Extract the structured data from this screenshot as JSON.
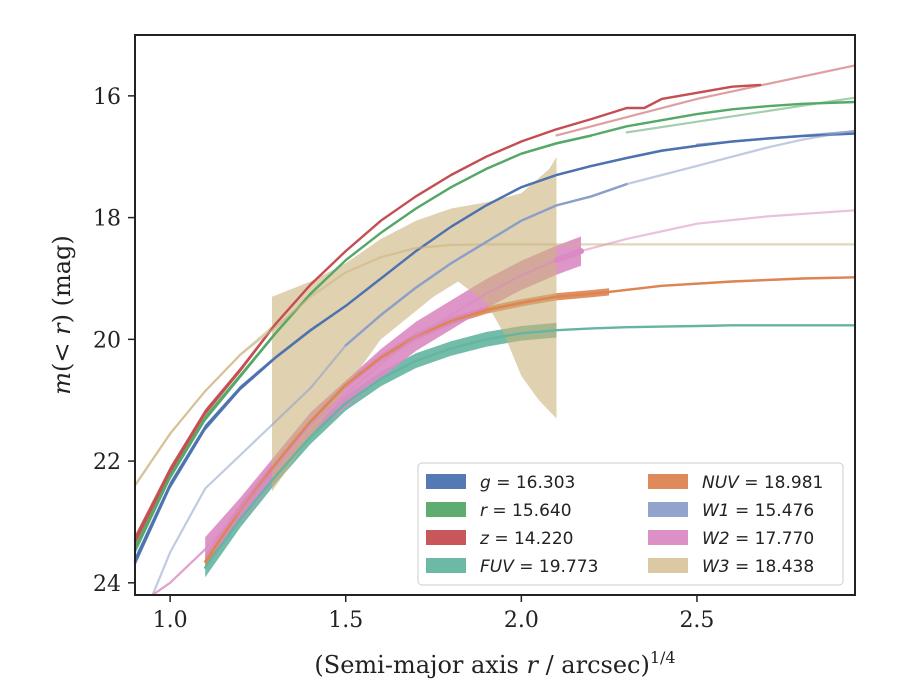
{
  "chart_data": {
    "type": "line",
    "xlabel": "(Semi-major axis r / arcsec)",
    "xlabel_parts": {
      "pre": "(Semi-major axis ",
      "var": "r",
      "post": " / arcsec)",
      "sup": "1/4"
    },
    "ylabel_parts": {
      "var1": "m",
      "mid": "(< ",
      "var2": "r",
      "post": ") (mag)"
    },
    "xlim": [
      0.9,
      2.95
    ],
    "ylim": [
      24.2,
      15.0
    ],
    "y_inverted": true,
    "xticks": [
      1.0,
      1.5,
      2.0,
      2.5
    ],
    "xtick_labels": [
      "1.0",
      "1.5",
      "2.0",
      "2.5"
    ],
    "yticks": [
      16,
      18,
      20,
      22,
      24
    ],
    "ytick_labels": [
      "16",
      "18",
      "20",
      "22",
      "24"
    ],
    "grid": false,
    "legend_position": "lower-right",
    "series": [
      {
        "name": "g = 16.303",
        "band": "g",
        "mag_text": "16.303",
        "color": "#4c72b0",
        "x": [
          0.9,
          1.0,
          1.1,
          1.2,
          1.3,
          1.4,
          1.5,
          1.6,
          1.7,
          1.8,
          1.9,
          2.0,
          2.1,
          2.2,
          2.3,
          2.4,
          2.5,
          2.6,
          2.7,
          2.8,
          2.95
        ],
        "y": [
          23.65,
          22.4,
          21.45,
          20.8,
          20.3,
          19.85,
          19.45,
          19.0,
          18.55,
          18.15,
          17.8,
          17.5,
          17.3,
          17.15,
          17.02,
          16.9,
          16.82,
          16.75,
          16.7,
          16.66,
          16.62
        ],
        "band_x": [
          0.9,
          1.0,
          1.1,
          1.2,
          1.3,
          1.4,
          1.5,
          1.6,
          1.7,
          1.8,
          1.9,
          2.0,
          2.1,
          2.2,
          2.3,
          2.4,
          2.5
        ],
        "band_width": [
          0.08,
          0.06,
          0.05,
          0.04,
          0.03,
          0.03,
          0.02,
          0.02,
          0.02,
          0.02,
          0.02,
          0.02,
          0.02,
          0.02,
          0.02,
          0.02,
          0.02
        ],
        "faint_x": [
          2.5,
          2.95
        ],
        "faint_y": [
          16.8,
          16.58
        ]
      },
      {
        "name": "r = 15.640",
        "band": "r",
        "mag_text": "15.640",
        "color": "#55a868",
        "x": [
          0.9,
          1.0,
          1.1,
          1.2,
          1.3,
          1.4,
          1.5,
          1.6,
          1.7,
          1.8,
          1.9,
          2.0,
          2.1,
          2.2,
          2.3,
          2.4,
          2.5,
          2.6,
          2.7,
          2.8,
          2.95
        ],
        "y": [
          23.45,
          22.25,
          21.3,
          20.6,
          19.9,
          19.25,
          18.7,
          18.25,
          17.85,
          17.5,
          17.2,
          16.95,
          16.78,
          16.65,
          16.5,
          16.4,
          16.3,
          16.22,
          16.17,
          16.13,
          16.1
        ],
        "band_x": [
          0.9,
          1.0,
          1.1,
          1.2,
          1.3,
          1.4,
          1.5,
          1.6,
          1.7,
          1.8,
          1.9,
          2.0,
          2.1,
          2.2
        ],
        "band_width": [
          0.08,
          0.06,
          0.05,
          0.04,
          0.03,
          0.03,
          0.02,
          0.02,
          0.02,
          0.02,
          0.02,
          0.02,
          0.02,
          0.02
        ],
        "faint_x": [
          2.3,
          2.95
        ],
        "faint_y": [
          16.6,
          16.03
        ]
      },
      {
        "name": "z = 14.220",
        "band": "z",
        "mag_text": "14.220",
        "color": "#c44e52",
        "x": [
          0.9,
          1.0,
          1.1,
          1.2,
          1.3,
          1.4,
          1.5,
          1.6,
          1.7,
          1.8,
          1.9,
          2.0,
          2.1,
          2.2,
          2.3,
          2.35,
          2.4,
          2.5,
          2.6,
          2.68
        ],
        "y": [
          23.3,
          22.15,
          21.2,
          20.5,
          19.75,
          19.1,
          18.55,
          18.05,
          17.65,
          17.3,
          17.0,
          16.75,
          16.55,
          16.38,
          16.2,
          16.2,
          16.05,
          15.95,
          15.85,
          15.82
        ],
        "band_x": [
          0.9,
          1.0,
          1.1,
          1.2,
          1.3
        ],
        "band_width": [
          0.08,
          0.06,
          0.05,
          0.04,
          0.03
        ],
        "faint_x": [
          2.1,
          2.5,
          2.95
        ],
        "faint_y": [
          16.65,
          16.05,
          15.5
        ]
      },
      {
        "name": "FUV = 19.773",
        "band": "FUV",
        "mag_text": "19.773",
        "color": "#64b5a1",
        "x": [
          1.1,
          1.2,
          1.3,
          1.4,
          1.5,
          1.6,
          1.7,
          1.8,
          1.9,
          2.0,
          2.1,
          2.2,
          2.3,
          2.4,
          2.5,
          2.6,
          2.7,
          2.8,
          2.95
        ],
        "y": [
          23.75,
          22.95,
          22.25,
          21.6,
          21.05,
          20.65,
          20.35,
          20.15,
          20.0,
          19.9,
          19.85,
          19.82,
          19.8,
          19.79,
          19.78,
          19.77,
          19.77,
          19.77,
          19.77
        ],
        "band_x": [
          1.1,
          1.2,
          1.3,
          1.4,
          1.5,
          1.6,
          1.7,
          1.8,
          1.9,
          2.0,
          2.1
        ],
        "band_width": [
          0.16,
          0.14,
          0.12,
          0.12,
          0.12,
          0.12,
          0.12,
          0.12,
          0.12,
          0.12,
          0.12
        ],
        "faint_x": [],
        "faint_y": []
      },
      {
        "name": "NUV = 18.981",
        "band": "NUV",
        "mag_text": "18.981",
        "color": "#dd8452",
        "x": [
          1.1,
          1.2,
          1.3,
          1.4,
          1.5,
          1.6,
          1.7,
          1.8,
          1.9,
          2.0,
          2.1,
          2.2,
          2.25,
          2.4,
          2.6,
          2.8,
          2.95
        ],
        "y": [
          23.65,
          22.8,
          22.05,
          21.35,
          20.75,
          20.3,
          19.95,
          19.7,
          19.52,
          19.4,
          19.3,
          19.25,
          19.22,
          19.12,
          19.05,
          19.0,
          18.98
        ],
        "band_x": [
          1.1,
          1.2,
          1.3,
          1.4,
          1.5,
          1.6,
          1.7,
          1.8,
          1.9,
          2.0,
          2.1,
          2.2,
          2.25
        ],
        "band_width": [
          0.12,
          0.1,
          0.08,
          0.06,
          0.06,
          0.06,
          0.06,
          0.06,
          0.06,
          0.06,
          0.06,
          0.06,
          0.06
        ],
        "faint_x": [
          2.25,
          2.4,
          2.6,
          2.8,
          2.95
        ],
        "faint_y": [
          19.22,
          19.12,
          19.05,
          19.0,
          18.98
        ]
      },
      {
        "name": "W1 = 15.476",
        "band": "W1",
        "mag_text": "15.476",
        "color": "#8c9fc9",
        "x": [
          0.95,
          1.0,
          1.1,
          1.2,
          1.3,
          1.4,
          1.5,
          1.6,
          1.7,
          1.8,
          1.9,
          2.0,
          2.1,
          2.2,
          2.3,
          2.4,
          2.5,
          2.6,
          2.7,
          2.8,
          2.95
        ],
        "y": [
          24.2,
          23.5,
          22.45,
          21.9,
          21.35,
          20.8,
          20.1,
          19.6,
          19.15,
          18.75,
          18.4,
          18.05,
          17.8,
          17.65,
          17.45,
          17.3,
          17.15,
          17.0,
          16.85,
          16.72,
          16.57
        ],
        "band_x": [],
        "band_width": [],
        "faint_x": [],
        "faint_y": []
      },
      {
        "name": "W2 = 17.770",
        "band": "W2",
        "mag_text": "17.770",
        "color": "#da8bc3",
        "x": [
          0.95,
          1.0,
          1.1,
          1.2,
          1.3,
          1.4,
          1.5,
          1.6,
          1.7,
          1.8,
          1.9,
          2.0,
          2.1,
          2.17,
          2.3,
          2.5,
          2.7,
          2.95
        ],
        "y": [
          24.2,
          24.0,
          23.45,
          22.8,
          22.1,
          21.4,
          20.9,
          20.4,
          19.95,
          19.6,
          19.25,
          18.95,
          18.7,
          18.55,
          18.35,
          18.1,
          17.98,
          17.88
        ],
        "band_x": [
          1.1,
          1.2,
          1.3,
          1.4,
          1.5,
          1.6,
          1.7,
          1.8,
          1.9,
          2.0,
          2.1,
          2.17
        ],
        "band_width": [
          0.2,
          0.2,
          0.2,
          0.2,
          0.22,
          0.24,
          0.24,
          0.24,
          0.24,
          0.24,
          0.24,
          0.24
        ],
        "faint_x": [
          0.95,
          1.0,
          1.1
        ],
        "faint_y": [
          24.2,
          24.0,
          23.45
        ]
      },
      {
        "name": "W3 = 18.438",
        "band": "W3",
        "mag_text": "18.438",
        "color": "#ccb27c",
        "x": [
          0.9,
          1.0,
          1.1,
          1.2,
          1.3,
          1.4,
          1.5,
          1.6,
          1.7,
          1.8,
          1.9,
          2.0,
          2.2,
          2.4,
          2.6,
          2.8,
          2.95
        ],
        "y": [
          22.4,
          21.55,
          20.85,
          20.25,
          19.8,
          19.3,
          18.9,
          18.65,
          18.5,
          18.45,
          18.44,
          18.44,
          18.44,
          18.44,
          18.44,
          18.44,
          18.44
        ],
        "envelope_x": [
          1.29,
          1.4,
          1.5,
          1.6,
          1.7,
          1.8,
          1.9,
          2.0,
          2.08,
          2.1,
          2.1,
          2.05,
          2.0,
          1.95,
          1.9,
          1.82,
          1.75,
          1.6,
          1.45,
          1.35,
          1.29
        ],
        "envelope_upper": [
          19.3,
          19.05,
          18.75,
          18.35,
          18.05,
          17.85,
          17.75,
          17.6,
          17.2,
          17.0,
          21.3,
          21.0,
          20.6,
          19.9,
          19.4,
          19.05,
          19.3,
          20.0,
          21.2,
          22.0,
          22.5
        ],
        "faint_x": [
          0.9,
          1.0,
          1.1,
          1.2,
          1.29
        ],
        "faint_y": [
          22.4,
          21.55,
          20.85,
          20.25,
          19.8
        ]
      }
    ],
    "legend": [
      {
        "band": "g",
        "eq": " = 16.303",
        "color": "#4c72b0"
      },
      {
        "band": "r",
        "eq": " = 15.640",
        "color": "#55a868"
      },
      {
        "band": "z",
        "eq": " = 14.220",
        "color": "#c44e52"
      },
      {
        "band": "FUV",
        "eq": " = 19.773",
        "color": "#64b5a1"
      },
      {
        "band": "NUV",
        "eq": " = 18.981",
        "color": "#dd8452"
      },
      {
        "band": "W1",
        "eq": " = 15.476",
        "color": "#8c9fc9"
      },
      {
        "band": "W2",
        "eq": " = 17.770",
        "color": "#da8bc3"
      },
      {
        "band": "W3",
        "eq": " = 18.438",
        "color": "#ccb27c"
      }
    ]
  }
}
